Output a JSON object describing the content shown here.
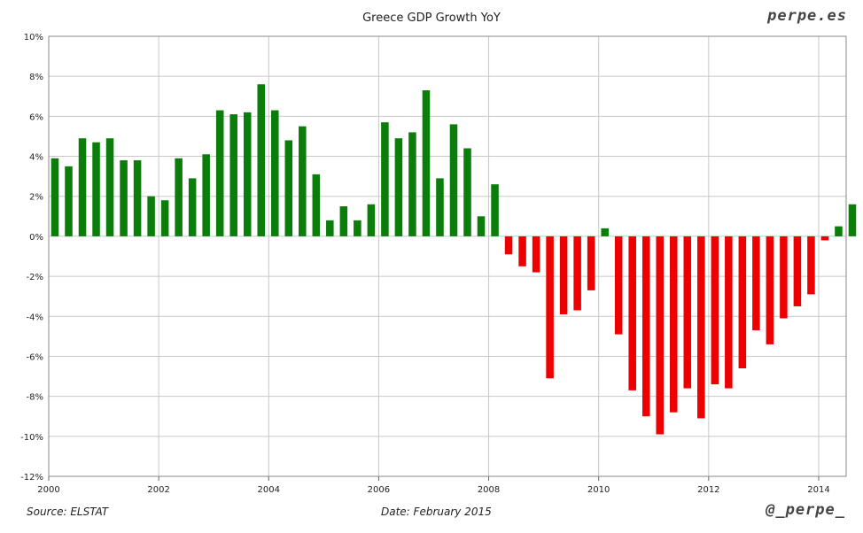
{
  "header": {
    "title": "Greece GDP Growth YoY",
    "brand": "perpe.es"
  },
  "footer": {
    "source": "Source: ELSTAT",
    "date": "Date: February 2015",
    "handle": "@_perpe_"
  },
  "colors": {
    "positive": "#0a7d0a",
    "negative": "#ee0000",
    "grid": "#c8c8c8",
    "axis": "#666666"
  },
  "chart_data": {
    "type": "bar",
    "title": "Greece GDP Growth YoY",
    "xlabel": "",
    "ylabel": "",
    "ylim": [
      -12,
      10
    ],
    "yticks": [
      -12,
      -10,
      -8,
      -6,
      -4,
      -2,
      0,
      2,
      4,
      6,
      8,
      10
    ],
    "ytick_labels": [
      "-12%",
      "-10%",
      "-8%",
      "-6%",
      "-4%",
      "-2%",
      "0%",
      "2%",
      "4%",
      "6%",
      "8%",
      "10%"
    ],
    "xticks": [
      "2000",
      "2002",
      "2004",
      "2006",
      "2008",
      "2010",
      "2012",
      "2014"
    ],
    "grid": true,
    "x_start_year": 2000,
    "x_end_year": 2014.5,
    "categories": [
      "2000Q1",
      "2000Q2",
      "2000Q3",
      "2000Q4",
      "2001Q1",
      "2001Q2",
      "2001Q3",
      "2001Q4",
      "2002Q1",
      "2002Q2",
      "2002Q3",
      "2002Q4",
      "2003Q1",
      "2003Q2",
      "2003Q3",
      "2003Q4",
      "2004Q1",
      "2004Q2",
      "2004Q3",
      "2004Q4",
      "2005Q1",
      "2005Q2",
      "2005Q3",
      "2005Q4",
      "2006Q1",
      "2006Q2",
      "2006Q3",
      "2006Q4",
      "2007Q1",
      "2007Q2",
      "2007Q3",
      "2007Q4",
      "2008Q1",
      "2008Q2",
      "2008Q3",
      "2008Q4",
      "2009Q1",
      "2009Q2",
      "2009Q3",
      "2009Q4",
      "2010Q1",
      "2010Q2",
      "2010Q3",
      "2010Q4",
      "2011Q1",
      "2011Q2",
      "2011Q3",
      "2011Q4",
      "2012Q1",
      "2012Q2",
      "2012Q3",
      "2012Q4",
      "2013Q1",
      "2013Q2",
      "2013Q3",
      "2013Q4",
      "2014Q1",
      "2014Q2",
      "2014Q3"
    ],
    "values": [
      3.9,
      3.5,
      4.9,
      4.7,
      4.9,
      3.8,
      3.8,
      2.0,
      1.8,
      3.9,
      2.9,
      4.1,
      6.3,
      6.1,
      6.2,
      7.6,
      6.3,
      4.8,
      5.5,
      3.1,
      0.8,
      1.5,
      0.8,
      1.6,
      5.7,
      4.9,
      5.2,
      7.3,
      2.9,
      5.6,
      4.4,
      1.0,
      2.6,
      -0.9,
      -1.5,
      -1.8,
      -7.1,
      -3.9,
      -3.7,
      -2.7,
      0.4,
      -4.9,
      -7.7,
      -9.0,
      -9.9,
      -8.8,
      -7.6,
      -9.1,
      -7.4,
      -7.6,
      -6.6,
      -4.7,
      -5.4,
      -4.1,
      -3.5,
      -2.9,
      -0.2,
      0.5,
      1.6
    ]
  }
}
